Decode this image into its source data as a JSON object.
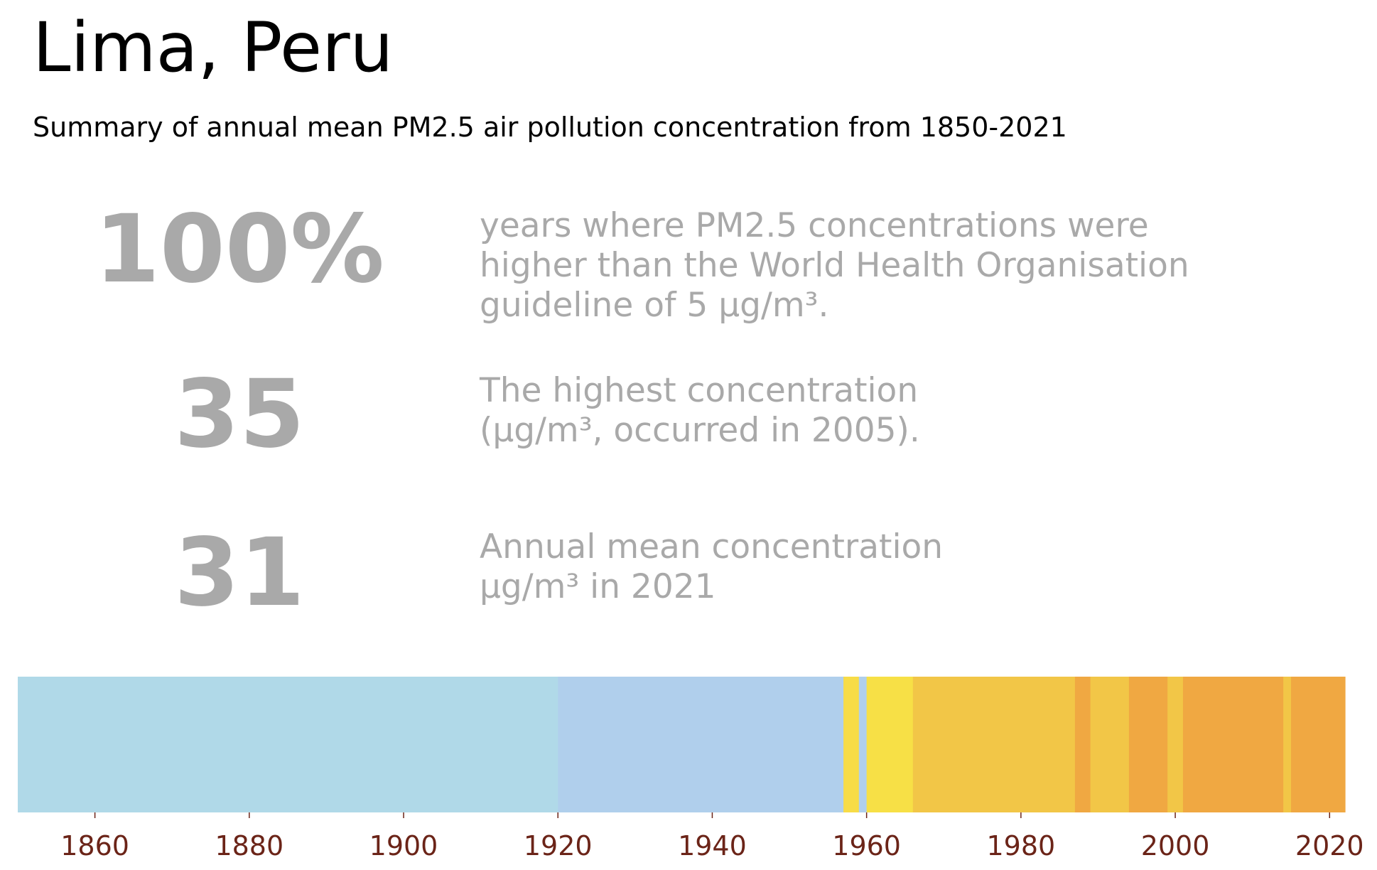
{
  "header": {
    "title": "Lima, Peru",
    "subtitle": "Summary of annual mean PM2.5 air pollution concentration from 1850-2021"
  },
  "stats": [
    {
      "number": "100%",
      "text": "years where PM2.5 concentrations were\nhigher than the World Health Organisation\nguideline of 5 μg/m³."
    },
    {
      "number": "35",
      "text": "The highest concentration\n(μg/m³, occurred in 2005)."
    },
    {
      "number": "31",
      "text": "Annual mean concentration\nμg/m³ in 2021"
    }
  ],
  "colors": {
    "stat_text": "#a9a9a9",
    "tick_label": "#6b2418"
  },
  "chart_data": {
    "type": "heatmap",
    "title": "",
    "xlabel": "",
    "ylabel": "",
    "xlim": [
      1850,
      2022
    ],
    "x_ticks": [
      1860,
      1880,
      1900,
      1920,
      1940,
      1960,
      1980,
      2000,
      2020
    ],
    "grid": false,
    "segments": [
      {
        "start": 1850,
        "end": 1919,
        "color": "#b0d9e8"
      },
      {
        "start": 1920,
        "end": 1956,
        "color": "#b0cfec"
      },
      {
        "start": 1957,
        "end": 1958,
        "color": "#f7dc47"
      },
      {
        "start": 1959,
        "end": 1959,
        "color": "#b0cfec"
      },
      {
        "start": 1960,
        "end": 1965,
        "color": "#f7e046"
      },
      {
        "start": 1966,
        "end": 1986,
        "color": "#f2c647"
      },
      {
        "start": 1987,
        "end": 1988,
        "color": "#f0a842"
      },
      {
        "start": 1989,
        "end": 1993,
        "color": "#f2c647"
      },
      {
        "start": 1994,
        "end": 1998,
        "color": "#f0a842"
      },
      {
        "start": 1999,
        "end": 2000,
        "color": "#f2c647"
      },
      {
        "start": 2001,
        "end": 2013,
        "color": "#f0a842"
      },
      {
        "start": 2014,
        "end": 2014,
        "color": "#f2c647"
      },
      {
        "start": 2015,
        "end": 2021,
        "color": "#f0a842"
      }
    ]
  }
}
